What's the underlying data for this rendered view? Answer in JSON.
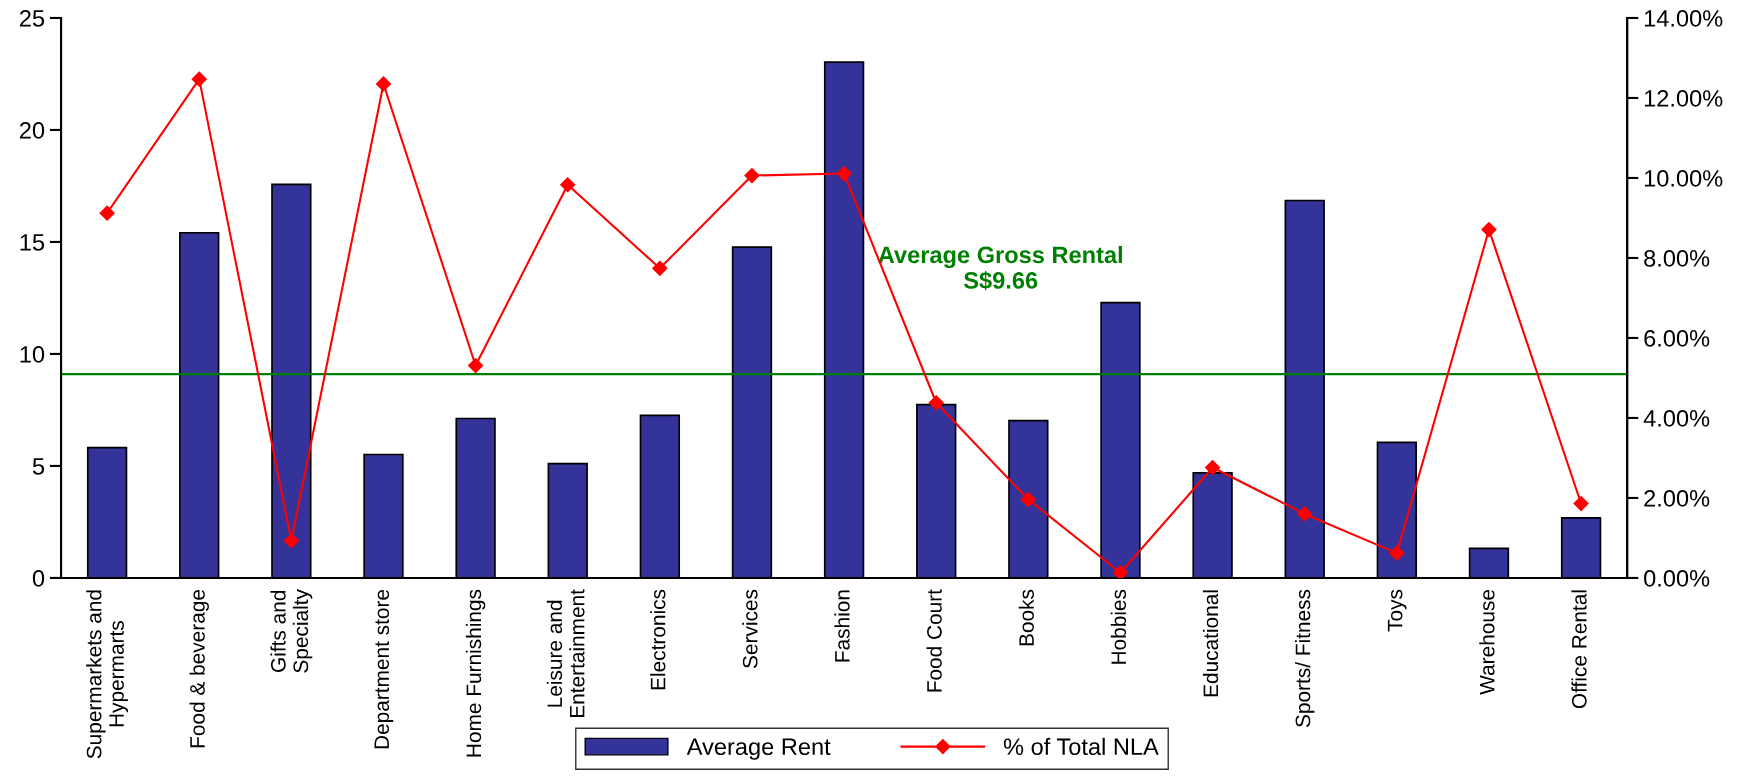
{
  "chart_data": {
    "type": "bar",
    "categories": [
      "Supermarkets and\nHypermarts",
      "Food & beverage",
      "Gifts and\nSpecialty",
      "Department store",
      "Home Furnishings",
      "Leisure and\nEntertainment",
      "Electronics",
      "Services",
      "Fashion",
      "Food Court",
      "Books",
      "Hobbies",
      "Educational",
      "Sports/ Fitness",
      "Toys",
      "Warehouse",
      "Office Rental"
    ],
    "series": [
      {
        "name": "Average Rent",
        "color": "#333399",
        "values": [
          5.82,
          15.41,
          17.57,
          5.51,
          7.12,
          5.1,
          7.26,
          14.77,
          23.03,
          7.74,
          7.02,
          12.29,
          4.69,
          16.85,
          6.05,
          1.32,
          2.68
        ]
      },
      {
        "name": "% of Total NLA",
        "type": "line",
        "axis": "y2",
        "color": "#ff0000",
        "marker": "diamond",
        "values": [
          9.12,
          12.47,
          0.93,
          12.35,
          5.31,
          9.83,
          7.74,
          10.06,
          10.11,
          4.38,
          1.96,
          0.13,
          2.76,
          1.6,
          0.62,
          8.71,
          1.86
        ]
      }
    ],
    "ylim": [
      0,
      25
    ],
    "yticks": [
      0,
      5,
      10,
      15,
      20,
      25
    ],
    "y2lim": [
      0,
      14
    ],
    "y2ticks": [
      {
        "value": 0,
        "label": "0.00%"
      },
      {
        "value": 2,
        "label": "2.00%"
      },
      {
        "value": 4,
        "label": "4.00%"
      },
      {
        "value": 6,
        "label": "6.00%"
      },
      {
        "value": 8,
        "label": "8.00%"
      },
      {
        "value": 10,
        "label": "10.00%"
      },
      {
        "value": 12,
        "label": "12.00%"
      },
      {
        "value": 14,
        "label": "14.00%"
      }
    ],
    "ref_lines": [
      {
        "axis": "y",
        "value": 9.1,
        "label": "Average Gross Rental\nS$9.66",
        "color": "#008000"
      }
    ],
    "grid": false,
    "legend": "bottom"
  }
}
